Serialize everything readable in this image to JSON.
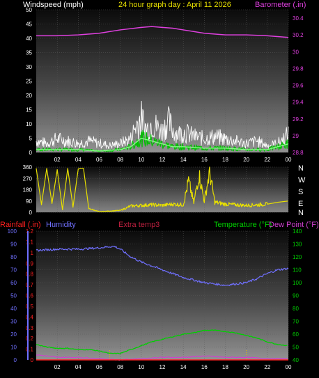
{
  "header": {
    "windspeed_label": "Windspeed (mph)",
    "title": "24 hour graph day : April 11 2026",
    "barometer_label": "Barometer (.in)"
  },
  "panel3_header": {
    "rainfall_label": "Rainfall (.in)",
    "humidity_label": "Humidity",
    "extratemp_label": "Extra temp3",
    "temperature_label": "Temperature (°F)",
    "dewpoint_label": "Dew Point (°F)"
  },
  "compass": [
    "N",
    "W",
    "S",
    "E",
    "N"
  ],
  "colors": {
    "background": "#000000",
    "panel_top": "#0c0c0c",
    "panel_bottom": "#8a8a8a",
    "barometer": "#e040e0",
    "wind_gust": "#ffffff",
    "wind_avg": "#00c000",
    "wind_avg_bright": "#80ff80",
    "direction": "#e8e000",
    "rain": "#ff2020",
    "humidity": "#7070ff",
    "temperature": "#00d000",
    "dewpoint": "#d040d0",
    "dotted_marker": "#e0c000"
  },
  "chart_data": [
    {
      "type": "line",
      "name": "wind-and-barometer",
      "x_ticks": [
        "02",
        "04",
        "06",
        "08",
        "10",
        "12",
        "14",
        "16",
        "18",
        "20",
        "22",
        "00"
      ],
      "left_axis": {
        "label": "Windspeed (mph)",
        "ticks": [
          0,
          5,
          10,
          15,
          20,
          25,
          30,
          35,
          40,
          45,
          50
        ],
        "range": [
          0,
          50
        ]
      },
      "right_axis": {
        "label": "Barometer (.in)",
        "ticks": [
          "28.8",
          "29",
          "29.2",
          "29.4",
          "29.6",
          "29.8",
          "30",
          "30.2",
          "30.4"
        ],
        "range": [
          28.8,
          30.5
        ]
      },
      "series": [
        {
          "name": "Barometer",
          "x": [
            0,
            2,
            4,
            6,
            8,
            10,
            11,
            12,
            13,
            14,
            16,
            18,
            20,
            22,
            24
          ],
          "values": [
            30.19,
            30.19,
            30.2,
            30.22,
            30.26,
            30.29,
            30.3,
            30.29,
            30.28,
            30.26,
            30.22,
            30.2,
            30.2,
            30.19,
            30.17
          ]
        },
        {
          "name": "Windspeed gust",
          "x": [
            0,
            1,
            2,
            3,
            4,
            5,
            6,
            7,
            8,
            9,
            9.5,
            10,
            10.5,
            11,
            11.5,
            12,
            12.5,
            13,
            13.5,
            14,
            15,
            16,
            17,
            18,
            19,
            20,
            21,
            22,
            23,
            24
          ],
          "values": [
            5,
            4,
            6,
            5,
            4,
            5,
            4,
            3,
            4,
            6,
            12,
            15,
            10,
            13,
            11,
            9,
            14,
            10,
            8,
            9,
            7,
            6,
            7,
            6,
            5,
            4,
            5,
            3,
            4,
            8
          ]
        },
        {
          "name": "Windspeed avg",
          "x": [
            0,
            2,
            4,
            6,
            8,
            9,
            10,
            11,
            12,
            13,
            14,
            16,
            18,
            20,
            22,
            23,
            24
          ],
          "values": [
            1,
            1,
            1,
            0.5,
            1,
            2,
            5,
            4,
            3,
            2,
            2,
            1.5,
            1.5,
            1,
            1,
            2,
            3
          ]
        }
      ]
    },
    {
      "type": "line",
      "name": "wind-direction",
      "y_ticks": [
        0,
        90,
        180,
        270,
        360
      ],
      "range": [
        0,
        360
      ],
      "series": [
        {
          "name": "Direction",
          "x": [
            0,
            0.5,
            1,
            1.5,
            2,
            2.5,
            3,
            3.5,
            4,
            4.5,
            5,
            6,
            7,
            8,
            9,
            10,
            11,
            12,
            13,
            14,
            14.5,
            15,
            15.5,
            16,
            16.5,
            17,
            18,
            19,
            20,
            21,
            22,
            23,
            24
          ],
          "values": [
            350,
            60,
            350,
            70,
            340,
            20,
            350,
            40,
            345,
            350,
            30,
            5,
            10,
            15,
            50,
            55,
            60,
            55,
            65,
            60,
            250,
            75,
            300,
            90,
            320,
            80,
            65,
            60,
            55,
            60,
            65,
            80,
            90
          ]
        }
      ]
    },
    {
      "type": "line",
      "name": "humidity-temperature",
      "left_axis_humidity": {
        "ticks": [
          0,
          10,
          20,
          30,
          40,
          50,
          60,
          70,
          80,
          90,
          100
        ],
        "range": [
          0,
          100
        ]
      },
      "left_axis_rain": {
        "ticks": [
          "0",
          "0.1",
          "0.2",
          "0.3",
          "0.4",
          "0.5",
          "0.6",
          "0.7",
          "0.8",
          "0.9",
          "1",
          "1.1",
          "1.2"
        ],
        "range": [
          0,
          1.2
        ]
      },
      "right_axis_temp": {
        "ticks": [
          40,
          50,
          60,
          70,
          80,
          90,
          100,
          110,
          120,
          130,
          140
        ],
        "range": [
          40,
          140
        ]
      },
      "series": [
        {
          "name": "Humidity",
          "x": [
            0,
            2,
            4,
            6,
            7,
            7.5,
            8,
            9,
            10,
            11,
            12,
            13,
            14,
            15,
            16,
            17,
            18,
            19,
            20,
            21,
            22,
            23,
            24
          ],
          "values": [
            85,
            86,
            86,
            87,
            88,
            88,
            86,
            80,
            76,
            73,
            70,
            67,
            64,
            62,
            60,
            59,
            58,
            59,
            60,
            63,
            67,
            70,
            71
          ]
        },
        {
          "name": "Temperature",
          "x": [
            0,
            1,
            2,
            3,
            4,
            5,
            6,
            7,
            8,
            9,
            10,
            11,
            12,
            13,
            14,
            15,
            16,
            17,
            18,
            19,
            20,
            21,
            22,
            23,
            24
          ],
          "values": [
            52,
            50,
            49,
            49,
            48,
            48,
            47,
            45,
            45,
            48,
            51,
            54,
            56,
            58,
            60,
            61,
            63,
            63,
            62,
            61,
            59,
            57,
            54,
            52,
            51
          ]
        },
        {
          "name": "Dew Point",
          "x": [
            0,
            2,
            4,
            6,
            8,
            10,
            12,
            14,
            16,
            18,
            20,
            22,
            24
          ],
          "values": [
            44,
            42,
            42,
            41,
            40,
            41,
            42,
            42,
            43,
            42,
            42,
            41,
            41
          ]
        },
        {
          "name": "Rainfall",
          "x": [
            0,
            24
          ],
          "values": [
            0,
            0
          ]
        }
      ],
      "markers_hours": [
        7,
        20
      ]
    }
  ]
}
